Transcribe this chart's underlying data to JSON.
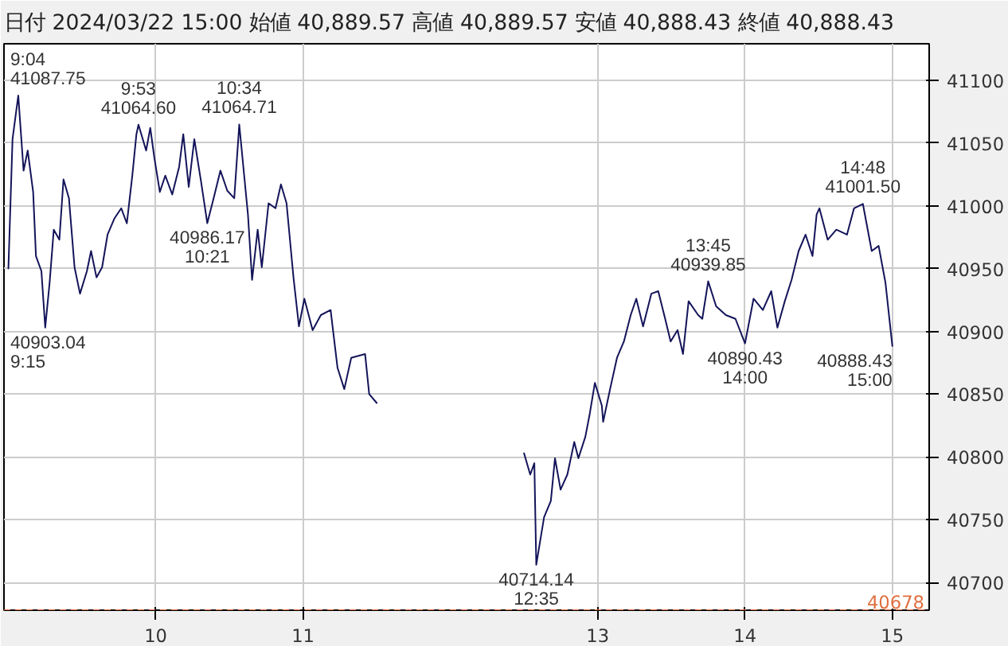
{
  "chart_data": {
    "type": "line",
    "title": "日付 2024/03/22 15:00 始値 40,889.57 高値 40,889.57 安値 40,888.43 終値 40,888.43",
    "x": [
      9.0,
      9.028,
      9.067,
      9.103,
      9.131,
      9.168,
      9.187,
      9.224,
      9.25,
      9.28,
      9.308,
      9.346,
      9.374,
      9.411,
      9.449,
      9.486,
      9.533,
      9.561,
      9.598,
      9.636,
      9.673,
      9.72,
      9.766,
      9.804,
      9.841,
      9.869,
      9.883,
      9.935,
      9.963,
      9.991,
      10.028,
      10.065,
      10.112,
      10.159,
      10.187,
      10.224,
      10.262,
      10.308,
      10.35,
      10.393,
      10.439,
      10.486,
      10.533,
      10.567,
      10.626,
      10.654,
      10.692,
      10.72,
      10.766,
      10.813,
      10.85,
      10.888,
      10.935,
      10.972,
      11.009,
      11.065,
      11.121,
      11.187,
      11.234,
      11.28,
      11.327,
      11.421,
      11.449,
      11.5,
      12.0,
      12.5,
      12.542,
      12.57,
      12.583,
      12.636,
      12.682,
      12.71,
      12.748,
      12.794,
      12.841,
      12.869,
      12.916,
      12.944,
      12.981,
      13.028,
      13.037,
      13.084,
      13.131,
      13.178,
      13.224,
      13.262,
      13.308,
      13.364,
      13.411,
      13.458,
      13.495,
      13.542,
      13.579,
      13.617,
      13.682,
      13.71,
      13.75,
      13.804,
      13.87,
      13.935,
      14.0,
      14.058,
      14.121,
      14.178,
      14.22,
      14.27,
      14.316,
      14.364,
      14.411,
      14.458,
      14.486,
      14.505,
      14.561,
      14.62,
      14.692,
      14.74,
      14.8,
      14.86,
      14.907,
      14.953,
      15.0
    ],
    "series": [
      {
        "color": "#14145a",
        "values": [
          40950,
          41053,
          41087.75,
          41028,
          41044,
          41011,
          40960,
          40948,
          40903.04,
          40939,
          40981,
          40973,
          41021,
          41006,
          40951,
          40930,
          40948,
          40964,
          40943,
          40951,
          40977,
          40990,
          40998,
          40986,
          41024,
          41057,
          41064.6,
          41044,
          41062,
          41038,
          41011,
          41024,
          41009,
          41031,
          41057,
          41015,
          41053,
          41019,
          40986.17,
          41006,
          41028,
          41012,
          41006,
          41064.71,
          40993,
          40941,
          40981,
          40951,
          41002,
          40998,
          41017,
          41002,
          40943,
          40904,
          40926,
          40901,
          40913,
          40917,
          40871,
          40854,
          40879,
          40882,
          40850,
          40843,
          null,
          40803,
          40786,
          40795,
          40714.14,
          40752,
          40765,
          40799,
          40774,
          40786,
          40812,
          40799,
          40816,
          40833,
          40859,
          40841,
          40828,
          40854,
          40879,
          40892,
          40913,
          40926,
          40904,
          40930,
          40932,
          40910,
          40892,
          40901,
          40882,
          40924,
          40913,
          40910,
          40939.85,
          40920,
          40913,
          40910,
          40890.43,
          40926,
          40917,
          40932,
          40903,
          40924,
          40941,
          40964,
          40977,
          40960,
          40993,
          40998,
          40973,
          40981,
          40977,
          40998,
          41001.5,
          40964,
          40968,
          40939,
          40888.43
        ]
      }
    ],
    "xlim": [
      8.97,
      15.25
    ],
    "xticks": [
      10,
      11,
      13,
      14,
      15
    ],
    "ylim": [
      40678,
      41129
    ],
    "yticks": [
      40700,
      40750,
      40800,
      40850,
      40900,
      40950,
      41000,
      41050,
      41100
    ],
    "grid": true,
    "line_style": "solid",
    "ref_lines": [
      {
        "axis": "y",
        "value": 40678,
        "label": "40678",
        "color": "#e07040",
        "line_style": "dashed"
      }
    ],
    "annotations": [
      {
        "text": "9:04\n41087.75",
        "x": 9.067,
        "y": 41087.75
      },
      {
        "text": "40903.04\n9:15",
        "x": 9.25,
        "y": 40903.04
      },
      {
        "text": "9:53\n41064.60",
        "x": 9.883,
        "y": 41064.6
      },
      {
        "text": "40986.17\n10:21",
        "x": 10.35,
        "y": 40986.17
      },
      {
        "text": "10:34\n41064.71",
        "x": 10.567,
        "y": 41064.71
      },
      {
        "text": "40714.14\n12:35",
        "x": 12.583,
        "y": 40714.14
      },
      {
        "text": "13:45\n40939.85",
        "x": 13.75,
        "y": 40939.85
      },
      {
        "text": "40890.43\n14:00",
        "x": 14.0,
        "y": 40890.43
      },
      {
        "text": "14:48\n41001.50",
        "x": 14.8,
        "y": 41001.5
      },
      {
        "text": "40888.43\n15:00",
        "x": 15.0,
        "y": 40888.43
      }
    ]
  }
}
